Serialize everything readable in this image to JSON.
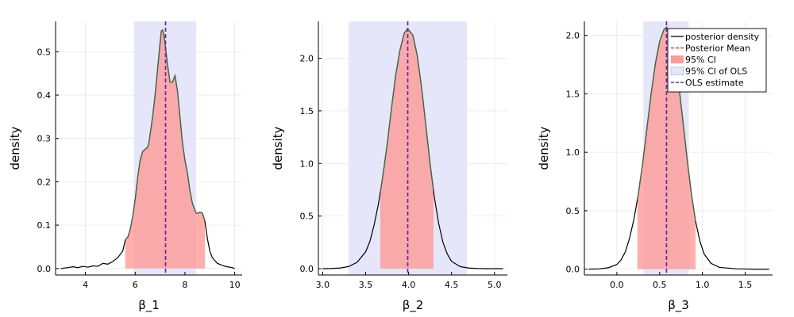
{
  "figure": {
    "legend": {
      "placement": "top-right of third panel",
      "entries": [
        {
          "label": "posterior density",
          "kind": "line",
          "color": "#000000"
        },
        {
          "label": "Posterior Mean",
          "kind": "dashed",
          "color": "#e03c31"
        },
        {
          "label": "95% CI",
          "kind": "patch",
          "color": "#ff9a96"
        },
        {
          "label": "95% CI of OLS",
          "kind": "patch",
          "color": "#e6e6fb"
        },
        {
          "label": "OLS estimate",
          "kind": "dashed",
          "color": "#5a2bb0"
        }
      ]
    }
  },
  "colors": {
    "density_line": "#000000",
    "ci_fill": "#ff9a96",
    "ols_ci_fill": "#e6e6fb",
    "posterior_mean": "#e03c31",
    "ols_estimate": "#5a2bb0",
    "overlap_line": "#3c6e47"
  },
  "chart_data": [
    {
      "type": "area",
      "xlabel": "β_1",
      "ylabel": "density",
      "xlim": [
        2.8,
        10.3
      ],
      "ylim": [
        -0.015,
        0.57
      ],
      "xticks": [
        4,
        6,
        8,
        10
      ],
      "yticks": [
        0.0,
        0.1,
        0.2,
        0.3,
        0.4,
        0.5
      ],
      "ytick_labels": [
        "0.0",
        "0.1",
        "0.2",
        "0.3",
        "0.4",
        "0.5"
      ],
      "grid": true,
      "ci": [
        5.6,
        8.8
      ],
      "ols_ci": [
        5.95,
        8.45
      ],
      "posterior_mean": 7.22,
      "ols_estimate": 7.22,
      "density": {
        "x": [
          3.0,
          3.3,
          3.5,
          3.7,
          3.9,
          4.1,
          4.3,
          4.5,
          4.7,
          4.9,
          5.1,
          5.3,
          5.5,
          5.6,
          5.65,
          5.7,
          5.8,
          5.9,
          6.0,
          6.1,
          6.2,
          6.3,
          6.4,
          6.5,
          6.55,
          6.6,
          6.7,
          6.8,
          6.9,
          7.0,
          7.05,
          7.1,
          7.15,
          7.2,
          7.3,
          7.4,
          7.5,
          7.6,
          7.7,
          7.8,
          7.9,
          8.0,
          8.1,
          8.2,
          8.3,
          8.4,
          8.45,
          8.5,
          8.6,
          8.7,
          8.8,
          8.9,
          9.0,
          9.1,
          9.3,
          9.5,
          9.7,
          9.9,
          10.0
        ],
        "y": [
          0.0,
          0.002,
          0.004,
          0.002,
          0.005,
          0.003,
          0.006,
          0.005,
          0.012,
          0.01,
          0.016,
          0.025,
          0.04,
          0.065,
          0.07,
          0.072,
          0.09,
          0.12,
          0.16,
          0.21,
          0.25,
          0.27,
          0.275,
          0.28,
          0.29,
          0.31,
          0.35,
          0.4,
          0.46,
          0.52,
          0.548,
          0.55,
          0.54,
          0.52,
          0.47,
          0.43,
          0.43,
          0.445,
          0.41,
          0.35,
          0.29,
          0.25,
          0.22,
          0.18,
          0.15,
          0.135,
          0.128,
          0.127,
          0.13,
          0.128,
          0.11,
          0.07,
          0.04,
          0.025,
          0.012,
          0.007,
          0.004,
          0.002,
          0.0
        ]
      }
    },
    {
      "type": "area",
      "xlabel": "β_2",
      "ylabel": "density",
      "xlim": [
        2.95,
        5.15
      ],
      "ylim": [
        -0.06,
        2.35
      ],
      "xticks": [
        3.0,
        3.5,
        4.0,
        4.5,
        5.0
      ],
      "xtick_labels": [
        "3.0",
        "3.5",
        "4.0",
        "4.5",
        "5.0"
      ],
      "yticks": [
        0.0,
        0.5,
        1.0,
        1.5,
        2.0
      ],
      "ytick_labels": [
        "0.0",
        "0.5",
        "1.0",
        "1.5",
        "2.0"
      ],
      "grid": true,
      "ci": [
        3.67,
        4.29
      ],
      "ols_ci": [
        3.3,
        4.68
      ],
      "posterior_mean": 3.99,
      "ols_estimate": 3.99,
      "density": {
        "x": [
          3.0,
          3.1,
          3.2,
          3.3,
          3.4,
          3.5,
          3.55,
          3.6,
          3.65,
          3.7,
          3.75,
          3.8,
          3.85,
          3.9,
          3.95,
          3.99,
          4.05,
          4.1,
          4.15,
          4.2,
          4.25,
          4.3,
          4.35,
          4.4,
          4.45,
          4.5,
          4.6,
          4.7,
          4.8,
          4.9,
          5.1
        ],
        "y": [
          0.0,
          0.002,
          0.006,
          0.02,
          0.06,
          0.16,
          0.26,
          0.42,
          0.62,
          0.88,
          1.18,
          1.52,
          1.84,
          2.08,
          2.24,
          2.28,
          2.22,
          2.03,
          1.73,
          1.37,
          1.0,
          0.68,
          0.43,
          0.25,
          0.14,
          0.07,
          0.02,
          0.006,
          0.002,
          0.0,
          0.0
        ]
      }
    },
    {
      "type": "area",
      "xlabel": "β_3",
      "ylabel": "density",
      "xlim": [
        -0.38,
        1.82
      ],
      "ylim": [
        -0.05,
        2.12
      ],
      "xticks": [
        0.0,
        0.5,
        1.0,
        1.5
      ],
      "xtick_labels": [
        "0.0",
        "0.5",
        "1.0",
        "1.5"
      ],
      "yticks": [
        0.0,
        0.5,
        1.0,
        1.5,
        2.0
      ],
      "ytick_labels": [
        "0.0",
        "0.5",
        "1.0",
        "1.5",
        "2.0"
      ],
      "grid": true,
      "ci": [
        0.24,
        0.92
      ],
      "ols_ci": [
        0.31,
        0.84
      ],
      "posterior_mean": 0.58,
      "ols_estimate": 0.58,
      "density": {
        "x": [
          -0.33,
          -0.2,
          -0.1,
          0.0,
          0.05,
          0.1,
          0.15,
          0.2,
          0.25,
          0.3,
          0.35,
          0.4,
          0.45,
          0.5,
          0.55,
          0.58,
          0.62,
          0.67,
          0.72,
          0.77,
          0.82,
          0.87,
          0.92,
          0.97,
          1.02,
          1.1,
          1.2,
          1.4,
          1.6,
          1.78
        ],
        "y": [
          0.0,
          0.003,
          0.012,
          0.04,
          0.08,
          0.15,
          0.27,
          0.43,
          0.64,
          0.9,
          1.2,
          1.5,
          1.76,
          1.95,
          2.05,
          2.07,
          2.02,
          1.86,
          1.6,
          1.28,
          0.95,
          0.65,
          0.41,
          0.24,
          0.13,
          0.05,
          0.015,
          0.003,
          0.0,
          0.0
        ]
      }
    }
  ]
}
